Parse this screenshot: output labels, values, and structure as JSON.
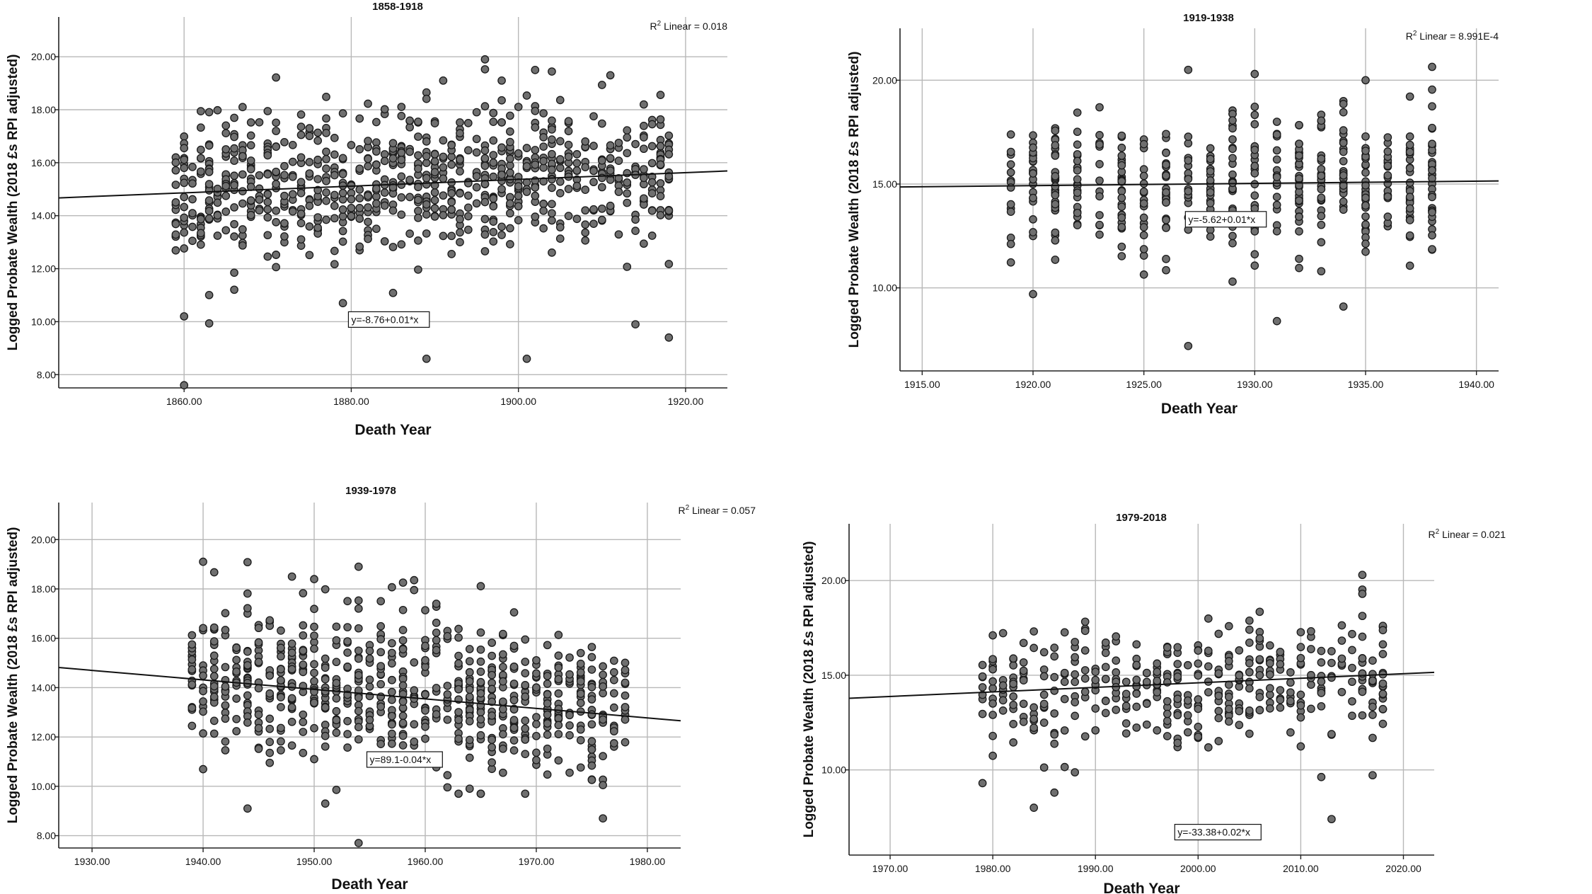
{
  "chart_data": [
    {
      "type": "scatter",
      "title": "1858-1918",
      "xlabel": "Death Year",
      "ylabel": "Logged Probate Wealth (2018 £s RPI adjusted)",
      "xlim": [
        1845,
        1925
      ],
      "ylim": [
        7.5,
        21.5
      ],
      "xticks": [
        1860,
        1880,
        1900,
        1920
      ],
      "xtick_labels": [
        "1860.00",
        "1880.00",
        "1900.00",
        "1920.00"
      ],
      "yticks": [
        8,
        10,
        12,
        14,
        16,
        18,
        20
      ],
      "ytick_labels": [
        "8.00",
        "10.00",
        "12.00",
        "14.00",
        "16.00",
        "18.00",
        "20.00"
      ],
      "grid": true,
      "fit_line": {
        "intercept": -8.76,
        "slope": 0.0127
      },
      "fit_label": "y=-8.76+0.01*x",
      "fit_label_at": [
        1880,
        10
      ],
      "r2_text": "R",
      "r2_sup": "2",
      "r2_rest": " Linear = 0.018",
      "x_range": [
        1859,
        1918
      ],
      "points_per_year": 14,
      "mean_y": 15.4,
      "spread_y": 1.4,
      "seed": 11,
      "outliers": [
        [
          1860,
          7.6
        ],
        [
          1889,
          8.6
        ],
        [
          1901,
          8.6
        ],
        [
          1879,
          10.7
        ],
        [
          1860,
          10.2
        ],
        [
          1914,
          9.9
        ],
        [
          1918,
          9.4
        ],
        [
          1898,
          19.1
        ],
        [
          1902,
          19.5
        ],
        [
          1911,
          19.3
        ],
        [
          1891,
          19.1
        ]
      ]
    },
    {
      "type": "scatter",
      "title": "1919-1938",
      "xlabel": "Death Year",
      "ylabel": "Logged Probate Wealth (2018 £s RPI adjusted)",
      "xlim": [
        1914,
        1941
      ],
      "ylim": [
        6,
        22.5
      ],
      "xticks": [
        1915,
        1920,
        1925,
        1930,
        1935,
        1940
      ],
      "xtick_labels": [
        "1915.00",
        "1920.00",
        "1925.00",
        "1930.00",
        "1935.00",
        "1940.00"
      ],
      "yticks": [
        10,
        15,
        20
      ],
      "ytick_labels": [
        "10.00",
        "15.00",
        "20.00"
      ],
      "grid": true,
      "fit_line": {
        "intercept": -5.62,
        "slope": 0.0107
      },
      "fit_label": "y=-5.62+0.01*x",
      "fit_label_at": [
        1927,
        13.2
      ],
      "r2_text": "R",
      "r2_sup": "2",
      "r2_rest": " Linear = 8.991E-4",
      "x_range": [
        1919,
        1938
      ],
      "points_per_year": 22,
      "mean_y": 15.1,
      "spread_y": 1.7,
      "seed": 23,
      "outliers": [
        [
          1927,
          7.2
        ],
        [
          1931,
          8.4
        ],
        [
          1920,
          9.7
        ],
        [
          1934,
          9.1
        ],
        [
          1927,
          20.5
        ],
        [
          1930,
          20.3
        ],
        [
          1935,
          20.0
        ]
      ]
    },
    {
      "type": "scatter",
      "title": "1939-1978",
      "xlabel": "Death Year",
      "ylabel": "Logged Probate Wealth (2018 £s RPI adjusted)",
      "xlim": [
        1927,
        1983
      ],
      "ylim": [
        7.5,
        21.5
      ],
      "xticks": [
        1930,
        1940,
        1950,
        1960,
        1970,
        1980
      ],
      "xtick_labels": [
        "1930.00",
        "1940.00",
        "1950.00",
        "1960.00",
        "1970.00",
        "1980.00"
      ],
      "yticks": [
        8,
        10,
        12,
        14,
        16,
        18,
        20
      ],
      "ytick_labels": [
        "8.00",
        "10.00",
        "12.00",
        "14.00",
        "16.00",
        "18.00",
        "20.00"
      ],
      "grid": true,
      "fit_line": {
        "intercept": 89.1,
        "slope": -0.03855
      },
      "fit_label": "y=89.1-0.04*x",
      "fit_label_at": [
        1955,
        11.0
      ],
      "r2_text": "R",
      "r2_sup": "2",
      "r2_rest": " Linear = 0.057",
      "x_range": [
        1939,
        1978
      ],
      "points_per_year": 18,
      "mean_y": 14.3,
      "spread_y": 1.6,
      "seed": 37,
      "outliers": [
        [
          1954,
          7.7
        ],
        [
          1976,
          8.7
        ],
        [
          1951,
          9.3
        ],
        [
          1944,
          9.1
        ],
        [
          1940,
          19.1
        ],
        [
          1954,
          18.9
        ],
        [
          1948,
          18.5
        ]
      ]
    },
    {
      "type": "scatter",
      "title": "1979-2018",
      "xlabel": "Death Year",
      "ylabel": "Logged Probate Wealth (2018 £s RPI adjusted)",
      "xlim": [
        1966,
        2023
      ],
      "ylim": [
        5.5,
        23
      ],
      "xticks": [
        1970,
        1980,
        1990,
        2000,
        2010,
        2020
      ],
      "xtick_labels": [
        "1970.00",
        "1980.00",
        "1990.00",
        "2000.00",
        "2010.00",
        "2020.00"
      ],
      "yticks": [
        10,
        15,
        20
      ],
      "ytick_labels": [
        "10.00",
        "15.00",
        "20.00"
      ],
      "grid": true,
      "fit_line": {
        "intercept": -33.38,
        "slope": 0.02399
      },
      "fit_label": "y=-33.38+0.02*x",
      "fit_label_at": [
        1998,
        6.6
      ],
      "r2_text": "R",
      "r2_sup": "2",
      "r2_rest": " Linear = 0.021",
      "x_range": [
        1979,
        2018
      ],
      "points_per_year": 11,
      "mean_y": 14.3,
      "spread_y": 1.6,
      "seed": 53,
      "outliers": [
        [
          2013,
          7.4
        ],
        [
          1984,
          8.0
        ],
        [
          1986,
          8.8
        ],
        [
          1979,
          9.3
        ],
        [
          2016,
          20.3
        ],
        [
          2016,
          19.3
        ]
      ]
    }
  ]
}
